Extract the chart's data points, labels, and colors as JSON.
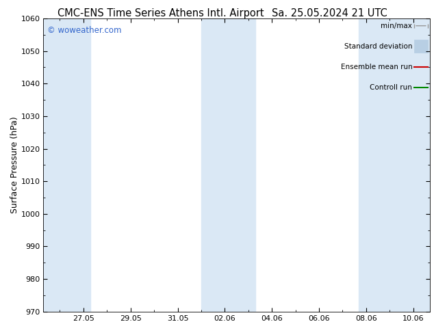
{
  "title_left": "CMC-ENS Time Series Athens Intl. Airport",
  "title_right": "Sa. 25.05.2024 21 UTC",
  "ylabel": "Surface Pressure (hPa)",
  "ylim": [
    970,
    1060
  ],
  "yticks": [
    970,
    980,
    990,
    1000,
    1010,
    1020,
    1030,
    1040,
    1050,
    1060
  ],
  "band_color": "#dae8f5",
  "watermark": "© woweather.com",
  "watermark_color": "#3366cc",
  "legend_labels": [
    "min/max",
    "Standard deviation",
    "Ensemble mean run",
    "Controll run"
  ],
  "background_color": "#ffffff",
  "title_fontsize": 10.5,
  "axis_label_fontsize": 9,
  "tick_fontsize": 8
}
